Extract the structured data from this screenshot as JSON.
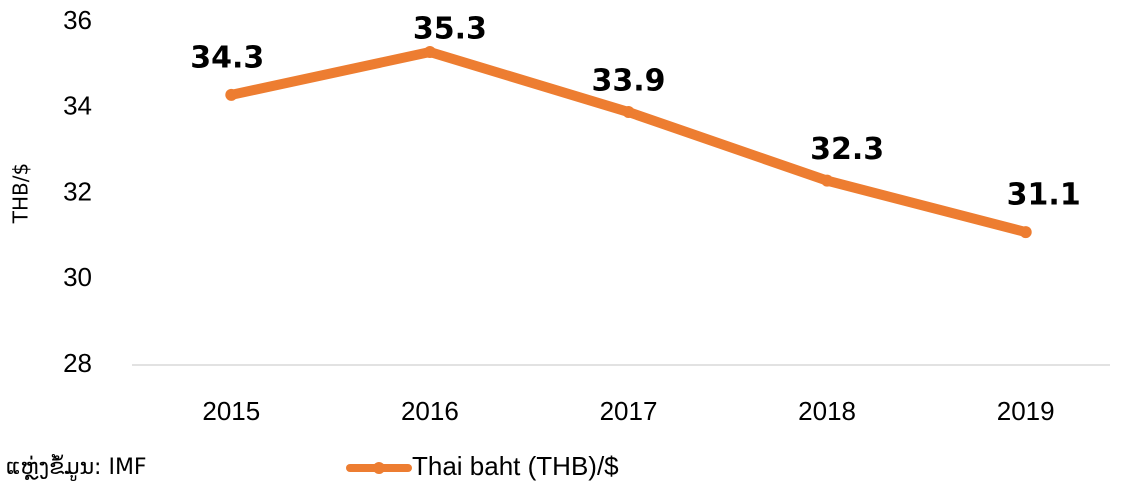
{
  "chart_data": {
    "type": "line",
    "y_label": "THB/$",
    "source": "ແຫຼ່ງຂໍ້ມູນ: IMF",
    "categories": [
      "2015",
      "2016",
      "2017",
      "2018",
      "2019"
    ],
    "series": [
      {
        "name": "Thai baht (THB)/$",
        "color": "#ED7D31",
        "values": [
          34.3,
          35.3,
          33.9,
          32.3,
          31.1
        ]
      }
    ],
    "ylim": [
      28,
      36
    ],
    "yticks": [
      28,
      30,
      32,
      34,
      36
    ],
    "grid": false,
    "legend": "bottom"
  }
}
